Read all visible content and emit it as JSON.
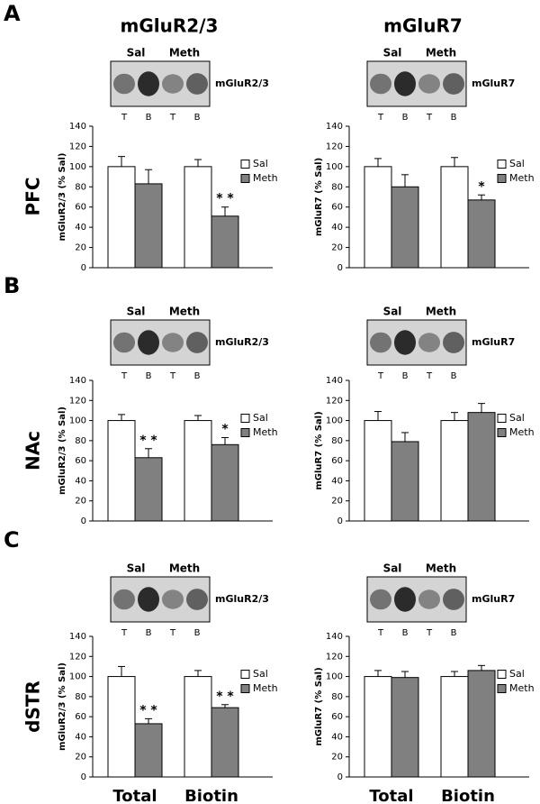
{
  "panel_labels": [
    "A",
    "B",
    "C"
  ],
  "column_titles": [
    "mGluR2/3",
    "mGluR7"
  ],
  "row_labels": [
    "PFC",
    "NAc",
    "dSTR"
  ],
  "blot_groups": [
    "Sal",
    "Meth"
  ],
  "lane_labels": [
    "T",
    "B",
    "T",
    "B"
  ],
  "chart_data": [
    {
      "type": "bar",
      "blot_label": "mGluR2/3",
      "y_label": "mGluR2/3 (% Sal)",
      "categories": [
        null,
        null
      ],
      "ylim": [
        0,
        140
      ],
      "yticks": [
        0,
        20,
        40,
        60,
        80,
        100,
        120,
        140
      ],
      "series": [
        {
          "name": "Sal",
          "color": "#ffffff",
          "values": [
            100,
            100
          ],
          "errors": [
            10,
            7
          ],
          "significance": [
            null,
            null
          ]
        },
        {
          "name": "Meth",
          "color": "#808080",
          "values": [
            83,
            51
          ],
          "errors": [
            14,
            9
          ],
          "significance": [
            null,
            "* *"
          ]
        }
      ]
    },
    {
      "type": "bar",
      "blot_label": "mGluR7",
      "y_label": "mGluR7 (% Sal)",
      "categories": [
        null,
        null
      ],
      "ylim": [
        0,
        140
      ],
      "yticks": [
        0,
        20,
        40,
        60,
        80,
        100,
        120,
        140
      ],
      "series": [
        {
          "name": "Sal",
          "color": "#ffffff",
          "values": [
            100,
            100
          ],
          "errors": [
            8,
            9
          ],
          "significance": [
            null,
            null
          ]
        },
        {
          "name": "Meth",
          "color": "#808080",
          "values": [
            80,
            67
          ],
          "errors": [
            12,
            5
          ],
          "significance": [
            null,
            "*"
          ]
        }
      ]
    },
    {
      "type": "bar",
      "blot_label": "mGluR2/3",
      "y_label": "mGluR2/3 (% Sal)",
      "categories": [
        null,
        null
      ],
      "ylim": [
        0,
        140
      ],
      "yticks": [
        0,
        20,
        40,
        60,
        80,
        100,
        120,
        140
      ],
      "series": [
        {
          "name": "Sal",
          "color": "#ffffff",
          "values": [
            100,
            100
          ],
          "errors": [
            6,
            5
          ],
          "significance": [
            null,
            null
          ]
        },
        {
          "name": "Meth",
          "color": "#808080",
          "values": [
            63,
            76
          ],
          "errors": [
            9,
            7
          ],
          "significance": [
            "* *",
            "*"
          ]
        }
      ]
    },
    {
      "type": "bar",
      "blot_label": "mGluR7",
      "y_label": "mGluR7 (% Sal)",
      "categories": [
        null,
        null
      ],
      "ylim": [
        0,
        140
      ],
      "yticks": [
        0,
        20,
        40,
        60,
        80,
        100,
        120,
        140
      ],
      "series": [
        {
          "name": "Sal",
          "color": "#ffffff",
          "values": [
            100,
            100
          ],
          "errors": [
            9,
            8
          ],
          "significance": [
            null,
            null
          ]
        },
        {
          "name": "Meth",
          "color": "#808080",
          "values": [
            79,
            108
          ],
          "errors": [
            9,
            9
          ],
          "significance": [
            null,
            null
          ]
        }
      ]
    },
    {
      "type": "bar",
      "blot_label": "mGluR2/3",
      "y_label": "mGluR2/3 (% Sal)",
      "categories": [
        "Total",
        "Biotin"
      ],
      "ylim": [
        0,
        140
      ],
      "yticks": [
        0,
        20,
        40,
        60,
        80,
        100,
        120,
        140
      ],
      "series": [
        {
          "name": "Sal",
          "color": "#ffffff",
          "values": [
            100,
            100
          ],
          "errors": [
            10,
            6
          ],
          "significance": [
            null,
            null
          ]
        },
        {
          "name": "Meth",
          "color": "#808080",
          "values": [
            53,
            69
          ],
          "errors": [
            5,
            3
          ],
          "significance": [
            "* *",
            "* *"
          ]
        }
      ]
    },
    {
      "type": "bar",
      "blot_label": "mGluR7",
      "y_label": "mGluR7 (% Sal)",
      "categories": [
        "Total",
        "Biotin"
      ],
      "ylim": [
        0,
        140
      ],
      "yticks": [
        0,
        20,
        40,
        60,
        80,
        100,
        120,
        140
      ],
      "series": [
        {
          "name": "Sal",
          "color": "#ffffff",
          "values": [
            100,
            100
          ],
          "errors": [
            6,
            5
          ],
          "significance": [
            null,
            null
          ]
        },
        {
          "name": "Meth",
          "color": "#808080",
          "values": [
            99,
            106
          ],
          "errors": [
            6,
            5
          ],
          "significance": [
            null,
            null
          ]
        }
      ]
    }
  ]
}
